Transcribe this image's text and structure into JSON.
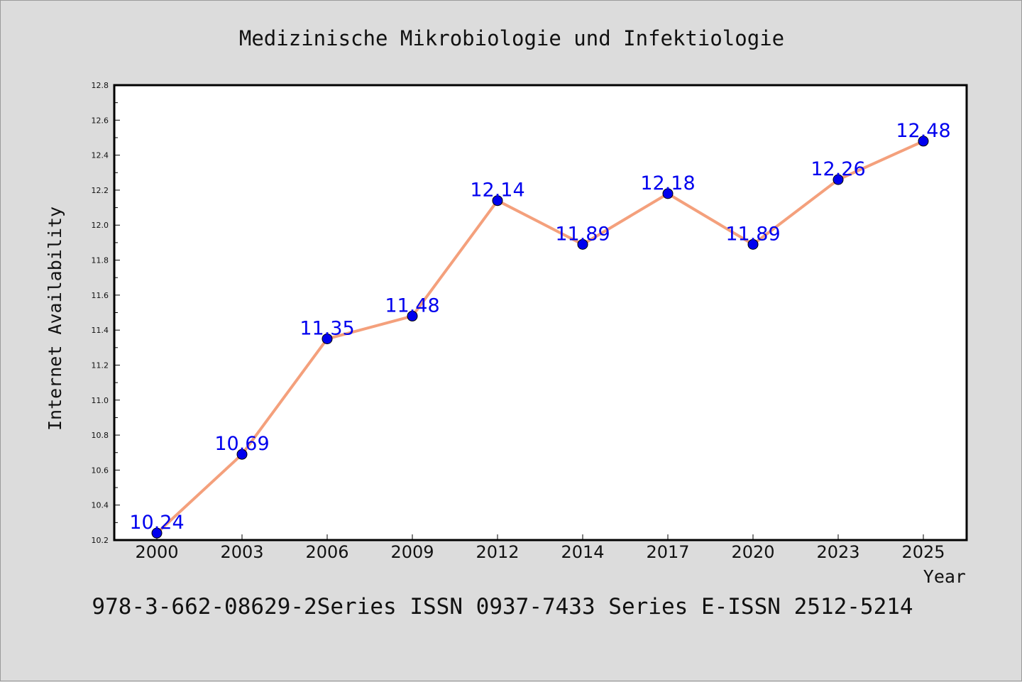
{
  "chart_data": {
    "type": "line",
    "title": "Medizinische Mikrobiologie und Infektiologie",
    "xlabel": "Year",
    "ylabel": "Internet Availability",
    "categories": [
      "2000",
      "2003",
      "2006",
      "2009",
      "2012",
      "2014",
      "2017",
      "2020",
      "2023",
      "2025"
    ],
    "series": [
      {
        "values": [
          10.24,
          10.69,
          11.35,
          11.48,
          12.14,
          11.89,
          12.18,
          11.89,
          12.26,
          12.48
        ],
        "labels": [
          "10.24",
          "10.69",
          "11.35",
          "11.48",
          "12.14",
          "11.89",
          "12.18",
          "11.89",
          "12.26",
          "12.48"
        ]
      }
    ],
    "ylim": [
      10.2,
      12.8
    ],
    "yticks": [
      "10.2",
      "10.4",
      "10.6",
      "10.8",
      "11.0",
      "11.2",
      "11.4",
      "11.6",
      "11.8",
      "12.0",
      "12.2",
      "12.4",
      "12.6",
      "12.8"
    ],
    "grid": false,
    "legend": "none",
    "line_color": "#f4a07c",
    "marker_color": "#0000ee",
    "label_color": "#0000ee",
    "background_color": "#dcdcdc",
    "plot_background": "#ffffff"
  },
  "footer": "978-3-662-08629-2Series ISSN 0937-7433 Series E-ISSN 2512-5214"
}
